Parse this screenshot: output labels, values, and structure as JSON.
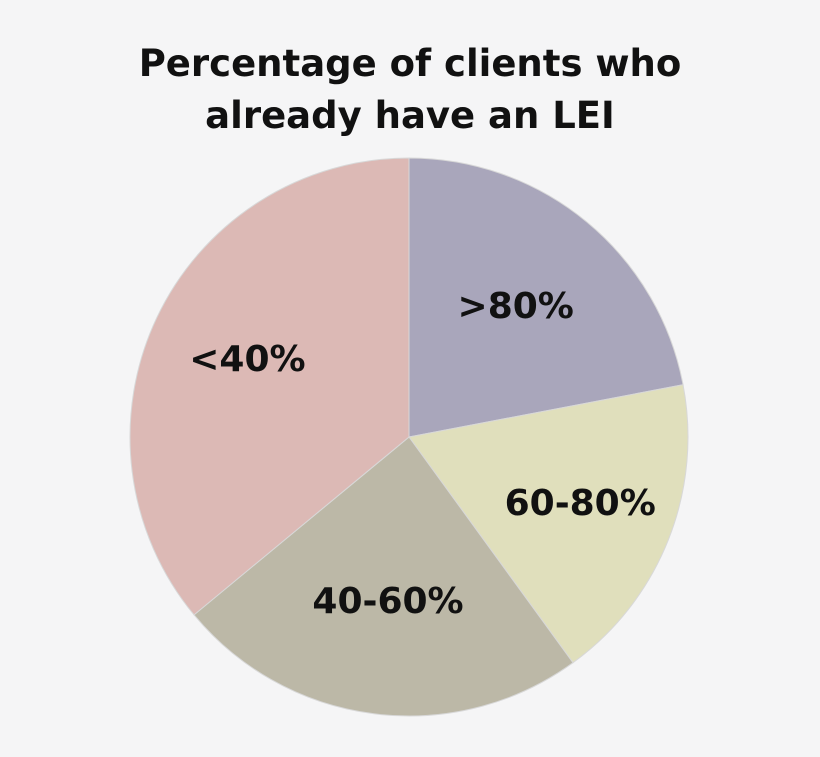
{
  "chart_data": {
    "type": "pie",
    "title_lines": [
      "Percentage of clients who",
      "already have an LEI"
    ],
    "slices": [
      {
        "label": ">80%",
        "value": 22,
        "color": "#a9a6bb"
      },
      {
        "label": "60-80%",
        "value": 18,
        "color": "#e0dfbc"
      },
      {
        "label": "40-60%",
        "value": 24,
        "color": "#bcb8a7"
      },
      {
        "label": "<40%",
        "value": 36,
        "color": "#dcb9b5"
      }
    ],
    "start": "12 o'clock",
    "direction": "clockwise",
    "legend": "none"
  }
}
